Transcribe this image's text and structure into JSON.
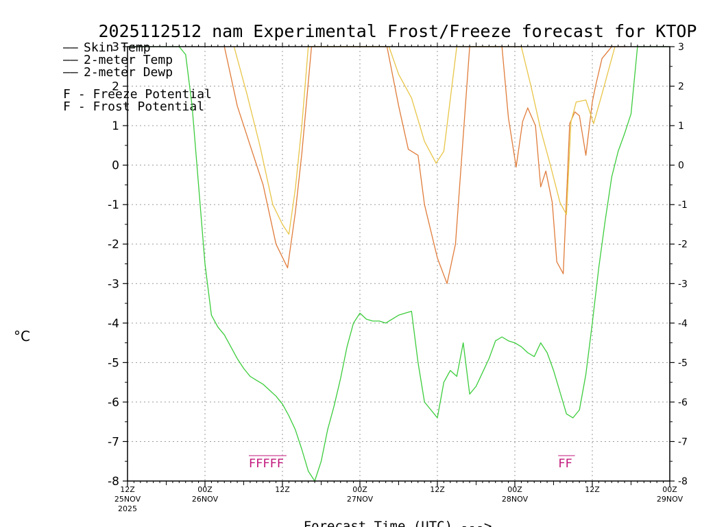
{
  "chart_data": {
    "type": "line",
    "title": "2025112512 nam Experimental Frost/Freeze forecast for KTOP",
    "ylabel": "°C",
    "xlabel": "Forecast Time (UTC) --->",
    "ylim": [
      -8,
      3
    ],
    "xlim": [
      0,
      84
    ],
    "y_ticks": [
      "3",
      "2",
      "1",
      "0",
      "-1",
      "-2",
      "-3",
      "-4",
      "-5",
      "-6",
      "-7",
      "-8"
    ],
    "x_ticks": [
      {
        "hour": 0,
        "time": "12Z",
        "date": "25NOV",
        "year": "2025"
      },
      {
        "hour": 12,
        "time": "00Z",
        "date": "26NOV",
        "year": ""
      },
      {
        "hour": 24,
        "time": "12Z",
        "date": "",
        "year": ""
      },
      {
        "hour": 36,
        "time": "00Z",
        "date": "27NOV",
        "year": ""
      },
      {
        "hour": 48,
        "time": "12Z",
        "date": "",
        "year": ""
      },
      {
        "hour": 60,
        "time": "00Z",
        "date": "28NOV",
        "year": ""
      },
      {
        "hour": 72,
        "time": "12Z",
        "date": "",
        "year": ""
      },
      {
        "hour": 84,
        "time": "00Z",
        "date": "29NOV",
        "year": ""
      }
    ],
    "grid": true,
    "legend": [
      {
        "dash": "——",
        "label": "Skin Temp",
        "color": "#e07b39"
      },
      {
        "dash": "——",
        "label": "2-meter Temp",
        "color": "#e8c547"
      },
      {
        "dash": "——",
        "label": "2-meter Dewp",
        "color": "#3bcc3b"
      },
      {
        "dash": "F",
        "label": " - Freeze Potential",
        "color": "#c0157a"
      },
      {
        "dash": "F",
        "label": " - Frost Potential",
        "color": "#5a6ee0"
      }
    ],
    "series": [
      {
        "name": "Skin Temp",
        "color": "#e07b39",
        "x": [
          15.0,
          17.0,
          19.0,
          21.0,
          23.0,
          24.8,
          26.0,
          27.0,
          28.5,
          30.0,
          40.2,
          42.0,
          43.5,
          45.0,
          46.0,
          48.0,
          49.5,
          50.8,
          53.0,
          58.0,
          59.0,
          60.2,
          61.2,
          62.0,
          63.2,
          64.0,
          64.8,
          65.8,
          66.5,
          67.5,
          68.5,
          69.3,
          70.0,
          71.0,
          72.0,
          72.5,
          73.5,
          75.0,
          76.5,
          77.3
        ],
        "y": [
          3.0,
          1.5,
          0.5,
          -0.5,
          -2.0,
          -2.6,
          -1.2,
          0.3,
          3.0,
          3.0,
          3.0,
          1.5,
          0.4,
          0.25,
          -1.0,
          -2.35,
          -3.0,
          -2.0,
          3.0,
          3.0,
          1.2,
          -0.05,
          1.1,
          1.45,
          1.0,
          -0.55,
          -0.15,
          -0.95,
          -2.45,
          -2.75,
          1.05,
          1.35,
          1.25,
          0.25,
          1.6,
          2.0,
          2.7,
          3.0,
          3.0,
          3.0
        ]
      },
      {
        "name": "2-meter Temp",
        "color": "#e8c547",
        "x": [
          16.5,
          18.5,
          20.5,
          22.5,
          24.0,
          25.0,
          26.0,
          27.0,
          28.0,
          40.5,
          42.0,
          44.0,
          46.0,
          47.8,
          49.0,
          51.0,
          52.0,
          58.5,
          61.0,
          62.5,
          64.0,
          65.5,
          67.0,
          68.0,
          68.7,
          69.5,
          71.0,
          72.2,
          73.5,
          75.5
        ],
        "y": [
          3.0,
          1.8,
          0.5,
          -1.0,
          -1.5,
          -1.75,
          -0.6,
          1.0,
          3.0,
          3.0,
          2.3,
          1.7,
          0.6,
          0.05,
          0.35,
          3.0,
          3.0,
          3.0,
          3.0,
          2.0,
          0.9,
          0.0,
          -0.95,
          -1.25,
          1.1,
          1.6,
          1.65,
          1.05,
          1.8,
          3.0
        ]
      },
      {
        "name": "2-meter Dewp",
        "color": "#3bcc3b",
        "x": [
          0,
          1.0,
          2.0,
          3.0,
          4.0,
          5.0,
          6.0,
          7.0,
          8.0,
          9.0,
          10.0,
          11.0,
          12.0,
          13.0,
          14.0,
          15.0,
          16.0,
          17.0,
          18.0,
          19.0,
          20.0,
          21.0,
          22.0,
          23.0,
          24.0,
          25.0,
          26.0,
          27.0,
          28.0,
          29.0,
          30.0,
          31.0,
          32.0,
          33.0,
          34.0,
          35.0,
          36.0,
          37.0,
          38.0,
          39.0,
          40.0,
          41.0,
          42.0,
          43.0,
          44.0,
          45.0,
          46.0,
          47.0,
          48.0,
          49.0,
          50.0,
          51.0,
          52.0,
          53.0,
          54.0,
          55.0,
          56.0,
          57.0,
          58.0,
          59.0,
          60.0,
          61.0,
          62.0,
          63.0,
          64.0,
          65.0,
          66.0,
          67.0,
          68.0,
          69.0,
          70.0,
          71.0,
          72.0,
          73.0,
          74.0,
          75.0,
          76.0,
          77.0,
          78.0,
          79.0,
          80.0,
          81.0,
          82.0,
          83.0,
          84.0
        ],
        "y": [
          3.0,
          3.0,
          3.0,
          3.0,
          3.0,
          3.0,
          3.0,
          3.0,
          3.0,
          2.8,
          1.5,
          -0.5,
          -2.5,
          -3.8,
          -4.1,
          -4.3,
          -4.6,
          -4.9,
          -5.15,
          -5.35,
          -5.45,
          -5.55,
          -5.7,
          -5.85,
          -6.05,
          -6.35,
          -6.7,
          -7.2,
          -7.75,
          -8.0,
          -7.5,
          -6.7,
          -6.1,
          -5.4,
          -4.6,
          -4.0,
          -3.75,
          -3.9,
          -3.95,
          -3.95,
          -4.0,
          -3.9,
          -3.8,
          -3.75,
          -3.7,
          -5.0,
          -6.0,
          -6.2,
          -6.4,
          -5.5,
          -5.2,
          -5.35,
          -4.5,
          -5.8,
          -5.6,
          -5.25,
          -4.9,
          -4.45,
          -4.35,
          -4.45,
          -4.5,
          -4.6,
          -4.75,
          -4.85,
          -4.5,
          -4.75,
          -5.2,
          -5.75,
          -6.3,
          -6.4,
          -6.2,
          -5.3,
          -4.0,
          -2.6,
          -1.4,
          -0.3,
          0.35,
          0.8,
          1.3,
          3.0,
          3.0,
          3.0,
          3.0,
          3.0,
          3.0
        ]
      }
    ],
    "annotations": [
      {
        "text": "FFFFF",
        "hour": 21.5,
        "color": "#c0157a"
      },
      {
        "text": "FF",
        "hour": 67.8,
        "color": "#c0157a"
      }
    ]
  }
}
